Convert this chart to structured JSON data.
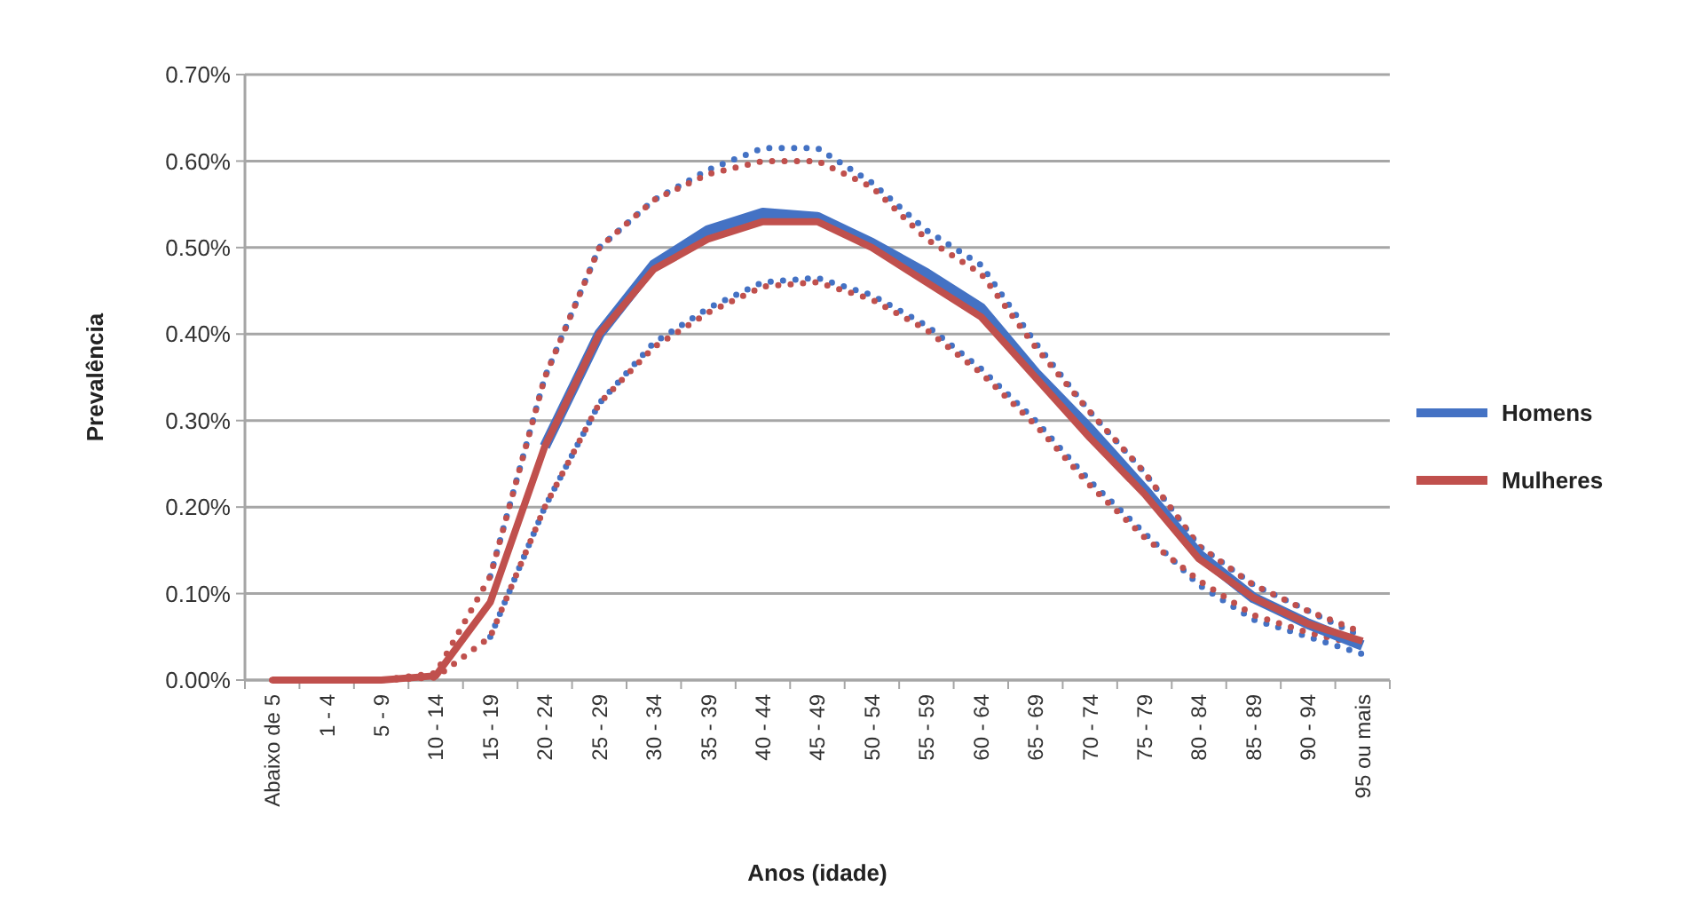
{
  "chart_data": {
    "type": "line",
    "xlabel": "Anos (idade)",
    "ylabel": "Prevalência",
    "categories": [
      "Abaixo de 5",
      "1 - 4",
      "5 - 9",
      "10 - 14",
      "15 - 19",
      "20 - 24",
      "25 - 29",
      "30 - 34",
      "35 - 39",
      "40 - 44",
      "45 - 49",
      "50 - 54",
      "55 - 59",
      "60 - 64",
      "65 - 69",
      "70 - 74",
      "75 - 79",
      "80 - 84",
      "85 - 89",
      "90 - 94",
      "95 ou mais"
    ],
    "series": [
      {
        "color": "#4472c4",
        "line_style": "dotted",
        "values": [
          null,
          null,
          null,
          null,
          0.05,
          0.2,
          0.32,
          0.39,
          0.43,
          0.46,
          0.465,
          0.445,
          0.41,
          0.36,
          0.3,
          0.23,
          0.17,
          0.11,
          0.07,
          0.05,
          0.03
        ]
      },
      {
        "color": "#4472c4",
        "line_style": "dotted",
        "values": [
          null,
          null,
          null,
          null,
          0.12,
          0.35,
          0.5,
          0.555,
          0.59,
          0.615,
          0.615,
          0.575,
          0.52,
          0.48,
          0.39,
          0.31,
          0.24,
          0.155,
          0.11,
          0.08,
          0.05
        ]
      },
      {
        "color": "#c0504d",
        "line_style": "dotted",
        "values": [
          0,
          0,
          0,
          0.003,
          0.05,
          0.2,
          0.32,
          0.385,
          0.425,
          0.455,
          0.46,
          0.44,
          0.405,
          0.355,
          0.295,
          0.225,
          0.165,
          0.115,
          0.075,
          0.055,
          0.04
        ]
      },
      {
        "color": "#c0504d",
        "line_style": "dotted",
        "values": [
          0,
          0,
          0,
          0.008,
          0.12,
          0.35,
          0.5,
          0.555,
          0.585,
          0.6,
          0.6,
          0.57,
          0.51,
          0.47,
          0.385,
          0.31,
          0.24,
          0.155,
          0.11,
          0.08,
          0.055
        ]
      },
      {
        "name": "Homens",
        "color": "#4472c4",
        "values": [
          null,
          null,
          null,
          null,
          null,
          0.27,
          0.4,
          0.48,
          0.52,
          0.54,
          0.535,
          0.505,
          0.47,
          0.43,
          0.355,
          0.29,
          0.22,
          0.145,
          0.095,
          0.065,
          0.04
        ]
      },
      {
        "name": "Mulheres",
        "color": "#c0504d",
        "values": [
          0,
          0,
          0,
          0.005,
          0.09,
          0.27,
          0.4,
          0.475,
          0.51,
          0.53,
          0.53,
          0.5,
          0.46,
          0.42,
          0.35,
          0.28,
          0.215,
          0.14,
          0.095,
          0.065,
          0.045
        ]
      }
    ],
    "ylim": [
      0,
      0.7
    ],
    "yticks": [
      {
        "value": 0,
        "label": "0.00%"
      },
      {
        "value": 0.1,
        "label": "0.10%"
      },
      {
        "value": 0.2,
        "label": "0.20%"
      },
      {
        "value": 0.3,
        "label": "0.30%"
      },
      {
        "value": 0.4,
        "label": "0.40%"
      },
      {
        "value": 0.5,
        "label": "0.50%"
      },
      {
        "value": 0.6,
        "label": "0.60%"
      },
      {
        "value": 0.7,
        "label": "0.70%"
      }
    ],
    "grid": "y",
    "legend": "right",
    "marker": "none",
    "line_style": "solid"
  }
}
